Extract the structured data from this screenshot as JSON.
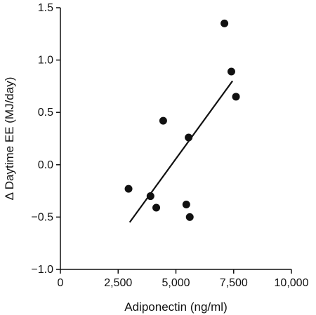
{
  "chart_data": {
    "type": "scatter",
    "title": "",
    "xlabel": "Adiponectin (ng/ml)",
    "ylabel": "Δ Daytime EE (MJ/day)",
    "xlim": [
      0,
      10000
    ],
    "ylim": [
      -1.0,
      1.5
    ],
    "x_ticks": [
      0,
      2500,
      5000,
      7500,
      10000
    ],
    "x_tick_labels": [
      "0",
      "2,500",
      "5,000",
      "7,500",
      "10,000"
    ],
    "y_ticks": [
      -1.0,
      -0.5,
      0.0,
      0.5,
      1.0,
      1.5
    ],
    "y_tick_labels": [
      "−1.0",
      "−0.5",
      "0.0",
      "0.5",
      "1.0",
      "1.5"
    ],
    "grid": false,
    "legend": "none",
    "marker_color": "#111111",
    "series": [
      {
        "points": [
          {
            "x": 2950,
            "y": -0.23
          },
          {
            "x": 3900,
            "y": -0.3
          },
          {
            "x": 4150,
            "y": -0.41
          },
          {
            "x": 4450,
            "y": 0.42
          },
          {
            "x": 5450,
            "y": -0.38
          },
          {
            "x": 5550,
            "y": 0.26
          },
          {
            "x": 5600,
            "y": -0.5
          },
          {
            "x": 7100,
            "y": 1.35
          },
          {
            "x": 7400,
            "y": 0.89
          },
          {
            "x": 7600,
            "y": 0.65
          }
        ]
      }
    ],
    "trend_line": {
      "x": [
        3000,
        7450
      ],
      "y": [
        -0.55,
        0.8
      ]
    }
  }
}
